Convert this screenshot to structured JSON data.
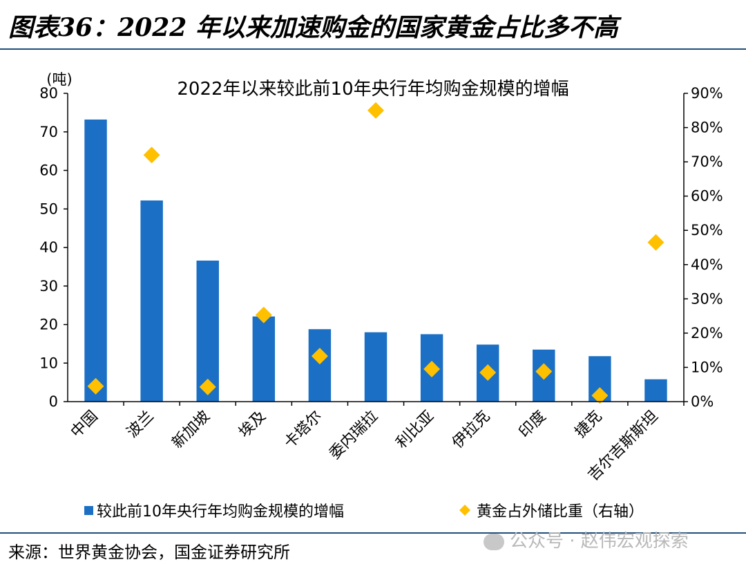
{
  "header": {
    "title": "图表36：2022 年以来加速购金的国家黄金占比多不高"
  },
  "footer": {
    "source": "来源：世界黄金协会，国金证券研究所",
    "watermark": "公众号 · 赵伟宏观探索"
  },
  "colors": {
    "bar": "#1b6fc4",
    "diamond": "#ffc000",
    "rule": "#1f4e79"
  },
  "chart_data": {
    "type": "bar",
    "title": "2022年以来较此前10年央行年均购金规模的增幅",
    "ylabel": "(吨)",
    "ylim": [
      0,
      80
    ],
    "y_ticks": [
      "0",
      "10",
      "20",
      "30",
      "40",
      "50",
      "60",
      "70",
      "80"
    ],
    "y2lim": [
      0,
      90
    ],
    "y2_ticks": [
      "0%",
      "10%",
      "20%",
      "30%",
      "40%",
      "50%",
      "60%",
      "70%",
      "80%",
      "90%"
    ],
    "categories": [
      "中国",
      "波兰",
      "新加坡",
      "埃及",
      "卡塔尔",
      "委内瑞拉",
      "利比亚",
      "伊拉克",
      "印度",
      "捷克",
      "吉尔吉斯斯坦"
    ],
    "series": [
      {
        "name": "较此前10年央行年均购金规模的增幅",
        "type": "bar",
        "axis": "left",
        "values": [
          73.2,
          52.2,
          36.6,
          22.1,
          18.8,
          18.0,
          17.5,
          14.8,
          13.5,
          11.8,
          5.8
        ]
      },
      {
        "name": "黄金占外储比重（右轴）",
        "type": "scatter",
        "marker": "diamond",
        "axis": "right",
        "values": [
          4.5,
          72,
          4.3,
          25.3,
          13.3,
          85,
          9.5,
          8.5,
          8.8,
          1.8,
          46.5
        ]
      }
    ],
    "legend_position": "bottom"
  }
}
